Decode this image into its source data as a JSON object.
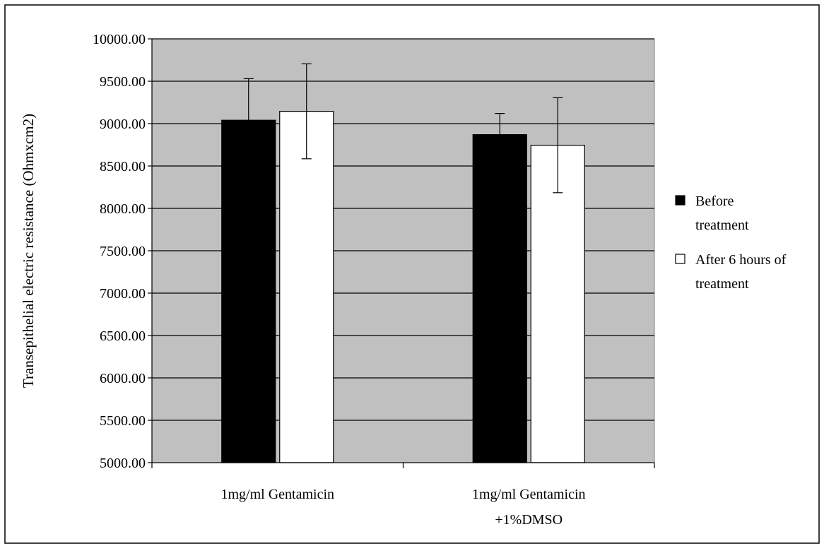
{
  "chart_data": {
    "type": "bar",
    "title": "",
    "xlabel": "",
    "ylabel": "Transepithelial electric resistance (Ohmxcm2)",
    "ylim": [
      5000,
      10000
    ],
    "ytick_step": 500,
    "ytick_labels": [
      "5000.00",
      "5500.00",
      "6000.00",
      "6500.00",
      "7000.00",
      "7500.00",
      "8000.00",
      "8500.00",
      "9000.00",
      "9500.00",
      "10000.00"
    ],
    "grid": true,
    "legend_position": "right",
    "categories": [
      [
        "1mg/ml Gentamicin"
      ],
      [
        "1mg/ml Gentamicin",
        "+1%DMSO"
      ]
    ],
    "series": [
      {
        "name_lines": [
          "Before",
          "treatment"
        ],
        "color": "#000000",
        "values": [
          9040,
          8870
        ],
        "errors": [
          490,
          250
        ]
      },
      {
        "name_lines": [
          "After 6 hours of",
          "treatment"
        ],
        "color": "#ffffff",
        "values": [
          9145,
          8745
        ],
        "errors": [
          560,
          560
        ]
      }
    ],
    "plot_background": "#c0c0c0"
  }
}
